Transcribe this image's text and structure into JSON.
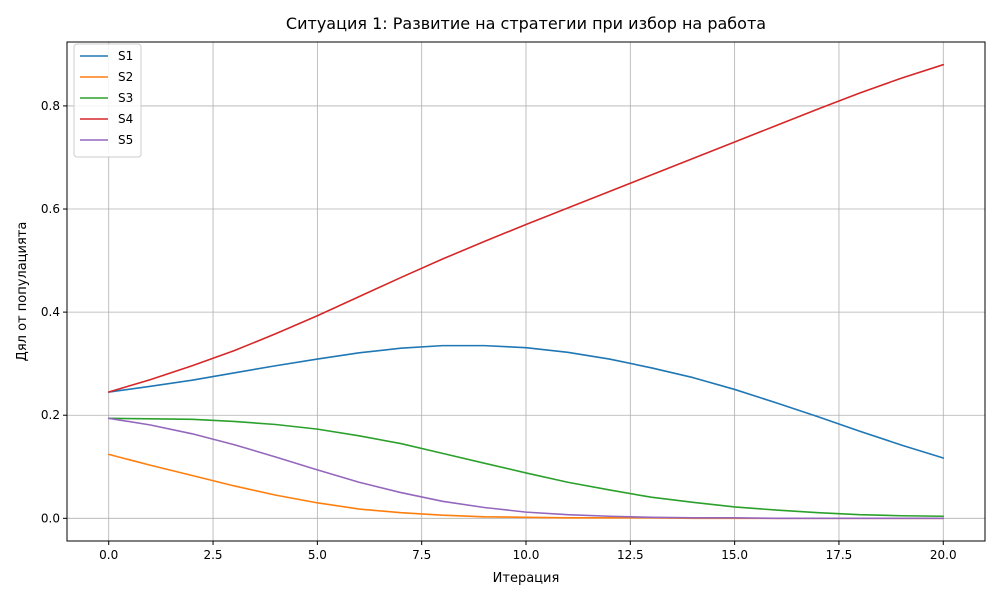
{
  "chart_data": {
    "type": "line",
    "title": "Ситуация 1: Развитие на стратегии при избор на работа",
    "xlabel": "Итерация",
    "ylabel": "Дял от популацията",
    "xlim": [
      -1,
      21
    ],
    "ylim": [
      -0.044,
      0.924
    ],
    "xticks": [
      0,
      2.5,
      5,
      7.5,
      10,
      12.5,
      15,
      17.5,
      20
    ],
    "xtick_labels": [
      "0.0",
      "2.5",
      "5.0",
      "7.5",
      "10.0",
      "12.5",
      "15.0",
      "17.5",
      "20.0"
    ],
    "yticks": [
      0,
      0.2,
      0.4,
      0.6,
      0.8
    ],
    "ytick_labels": [
      "0.0",
      "0.2",
      "0.4",
      "0.6",
      "0.8"
    ],
    "grid": true,
    "legend_position": "upper-left",
    "x": [
      0,
      1,
      2,
      3,
      4,
      5,
      6,
      7,
      8,
      9,
      10,
      11,
      12,
      13,
      14,
      15,
      16,
      17,
      18,
      19,
      20
    ],
    "series": [
      {
        "name": "S1",
        "color": "#1f77b4",
        "values": [
          0.245,
          0.256,
          0.268,
          0.282,
          0.296,
          0.309,
          0.321,
          0.33,
          0.335,
          0.335,
          0.331,
          0.322,
          0.309,
          0.292,
          0.273,
          0.25,
          0.224,
          0.197,
          0.169,
          0.142,
          0.117
        ]
      },
      {
        "name": "S2",
        "color": "#ff7f0e",
        "values": [
          0.124,
          0.103,
          0.083,
          0.063,
          0.045,
          0.03,
          0.018,
          0.011,
          0.006,
          0.003,
          0.002,
          0.001,
          0.001,
          0.001,
          0.0,
          0.0,
          0.0,
          0.0,
          0.0,
          0.0,
          0.0
        ]
      },
      {
        "name": "S3",
        "color": "#2ca02c",
        "values": [
          0.194,
          0.193,
          0.192,
          0.188,
          0.182,
          0.173,
          0.16,
          0.145,
          0.126,
          0.107,
          0.088,
          0.07,
          0.055,
          0.041,
          0.031,
          0.022,
          0.016,
          0.011,
          0.007,
          0.005,
          0.004
        ]
      },
      {
        "name": "S4",
        "color": "#d62728",
        "values": [
          0.245,
          0.269,
          0.296,
          0.325,
          0.358,
          0.393,
          0.43,
          0.467,
          0.503,
          0.537,
          0.57,
          0.602,
          0.634,
          0.666,
          0.698,
          0.73,
          0.762,
          0.794,
          0.825,
          0.854,
          0.88
        ]
      },
      {
        "name": "S5",
        "color": "#9467bd",
        "values": [
          0.194,
          0.181,
          0.164,
          0.143,
          0.119,
          0.094,
          0.07,
          0.05,
          0.033,
          0.021,
          0.012,
          0.007,
          0.004,
          0.002,
          0.001,
          0.001,
          0.0,
          0.0,
          0.0,
          0.0,
          0.0
        ]
      }
    ]
  }
}
